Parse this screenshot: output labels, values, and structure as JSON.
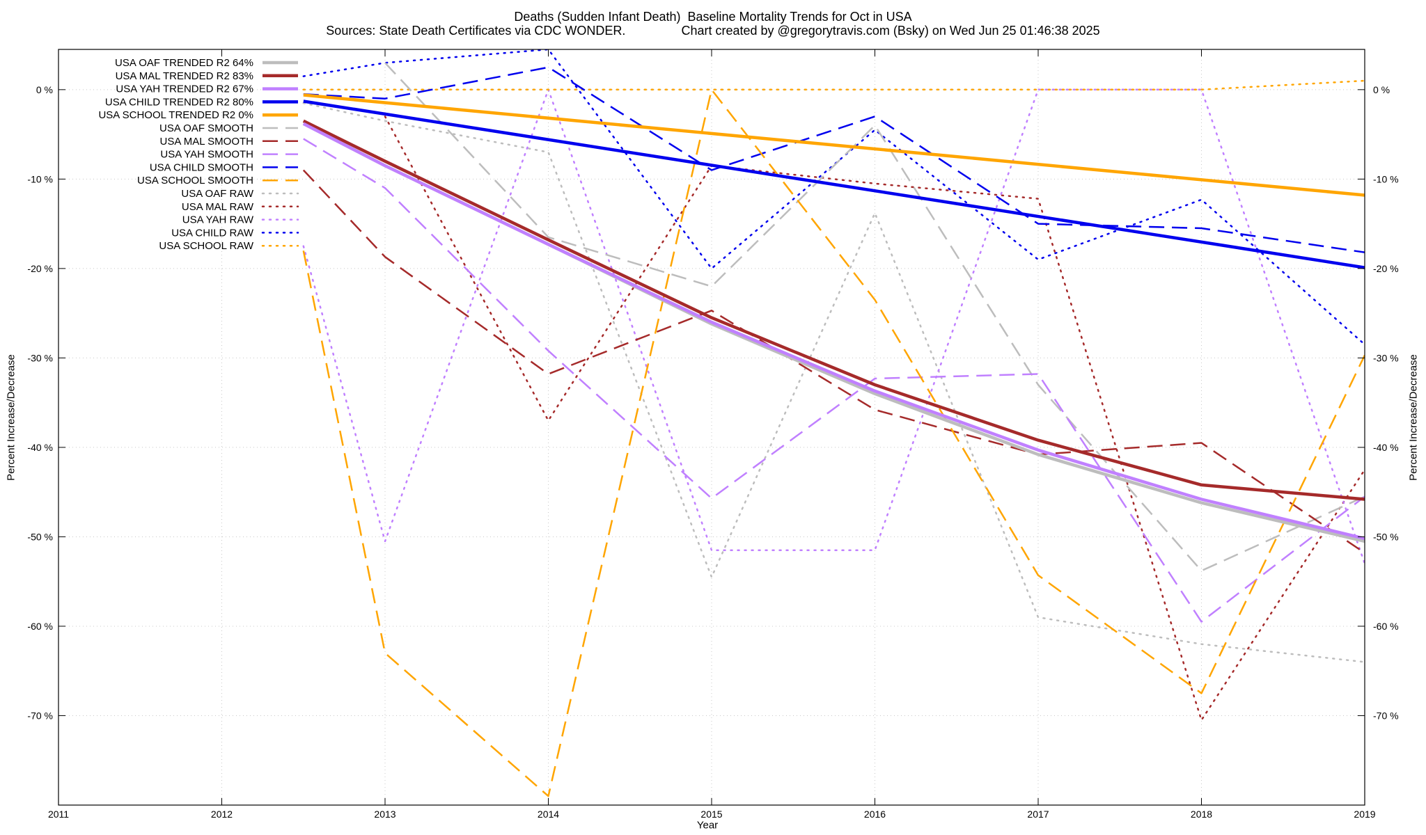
{
  "chart_data": {
    "type": "line",
    "title": "Deaths (Sudden Infant Death)  Baseline Mortality Trends for Oct in USA",
    "subtitle": "Sources: State Death Certificates via CDC WONDER.                Chart created by @gregorytravis.com (Bsky) on Wed Jun 25 01:46:38 2025",
    "xlabel": "Year",
    "ylabel": "Percent Increase/Decrease",
    "y2label": "Percent Increase/Decrease",
    "xlim": [
      2011,
      2019
    ],
    "ylim": [
      -80,
      4.5
    ],
    "x_ticks": [
      2011,
      2012,
      2013,
      2014,
      2015,
      2016,
      2017,
      2018,
      2019
    ],
    "y_ticks": [
      0,
      -10,
      -20,
      -30,
      -40,
      -50,
      -60,
      -70
    ],
    "y_tick_labels": [
      "0 %",
      "-10 %",
      "-20 %",
      "-30 %",
      "-40 %",
      "-50 %",
      "-60 %",
      "-70 %"
    ],
    "grid": true,
    "legend_position": "top-left",
    "series": [
      {
        "name": "USA OAF TRENDED R2  64%",
        "color": "#bdbdbd",
        "style": "solid",
        "width": 4.5,
        "x": [
          2012.5,
          2013,
          2014,
          2015,
          2016,
          2017,
          2018,
          2019
        ],
        "y": [
          -3.8,
          -8.5,
          -17.3,
          -26.2,
          -34.0,
          -40.8,
          -46.2,
          -50.5
        ]
      },
      {
        "name": "USA MAL TRENDED R2  83%",
        "color": "#a52a2a",
        "style": "solid",
        "width": 4.5,
        "x": [
          2012.5,
          2013,
          2014,
          2015,
          2016,
          2017,
          2018,
          2019
        ],
        "y": [
          -3.5,
          -8.0,
          -16.8,
          -25.5,
          -33.0,
          -39.2,
          -44.2,
          -45.8
        ]
      },
      {
        "name": "USA YAH TRENDED R2  67%",
        "color": "#c080ff",
        "style": "solid",
        "width": 4.5,
        "x": [
          2012.5,
          2013,
          2014,
          2015,
          2016,
          2017,
          2018,
          2019
        ],
        "y": [
          -3.8,
          -8.5,
          -17.3,
          -26.0,
          -33.7,
          -40.3,
          -45.8,
          -50.2
        ]
      },
      {
        "name": "USA CHILD TRENDED R2  80%",
        "color": "#0000ee",
        "style": "solid",
        "width": 4.5,
        "x": [
          2012.5,
          2019
        ],
        "y": [
          -1.3,
          -19.9
        ]
      },
      {
        "name": "USA SCHOOL TRENDED R2   0%",
        "color": "#ffa500",
        "style": "solid",
        "width": 4.5,
        "x": [
          2012.5,
          2019
        ],
        "y": [
          -0.6,
          -11.8
        ]
      },
      {
        "name": "USA OAF SMOOTH",
        "color": "#bdbdbd",
        "style": "dashed",
        "width": 2.5,
        "x": [
          2013,
          2014,
          2015,
          2016,
          2017,
          2018,
          2019
        ],
        "y": [
          3,
          -16.5,
          -22,
          -4,
          -33,
          -53.8,
          -45.5
        ]
      },
      {
        "name": "USA MAL SMOOTH",
        "color": "#a52a2a",
        "style": "dashed",
        "width": 2.5,
        "x": [
          2012.5,
          2013,
          2014,
          2015,
          2016,
          2017,
          2018,
          2019
        ],
        "y": [
          -9,
          -18.7,
          -31.8,
          -24.7,
          -35.8,
          -40.8,
          -39.5,
          -51.8
        ]
      },
      {
        "name": "USA YAH SMOOTH",
        "color": "#c080ff",
        "style": "dashed",
        "width": 2.5,
        "x": [
          2012.5,
          2013,
          2014,
          2015,
          2016,
          2017,
          2018,
          2019
        ],
        "y": [
          -5.5,
          -11,
          -29.2,
          -45.7,
          -32.3,
          -31.8,
          -59.5,
          -45.5
        ]
      },
      {
        "name": "USA CHILD SMOOTH",
        "color": "#0000ee",
        "style": "dashed",
        "width": 2.5,
        "x": [
          2012.5,
          2013,
          2014,
          2015,
          2016,
          2017,
          2018,
          2019
        ],
        "y": [
          -0.5,
          -1,
          2.5,
          -9,
          -3,
          -15,
          -15.5,
          -18.2
        ]
      },
      {
        "name": "USA SCHOOL SMOOTH",
        "color": "#ffa500",
        "style": "dashed",
        "width": 2.5,
        "x": [
          2012.5,
          2013,
          2014,
          2015,
          2016,
          2017,
          2018,
          2019
        ],
        "y": [
          -18,
          -63,
          -79,
          0,
          -23.5,
          -54.3,
          -67.5,
          -29.7
        ]
      },
      {
        "name": "USA OAF RAW",
        "color": "#bdbdbd",
        "style": "dotted",
        "width": 2.5,
        "x": [
          2012.5,
          2013,
          2014,
          2015,
          2016,
          2017,
          2018,
          2019
        ],
        "y": [
          -1.5,
          -3.5,
          -7,
          -54.5,
          -13.8,
          -59,
          -62,
          -64
        ]
      },
      {
        "name": "USA MAL RAW",
        "color": "#a52a2a",
        "style": "dotted",
        "width": 2.5,
        "x": [
          2013,
          2014,
          2015,
          2016,
          2017,
          2018,
          2019
        ],
        "y": [
          -3,
          -37,
          -8.5,
          -10.5,
          -12.2,
          -70.5,
          -42.5
        ]
      },
      {
        "name": "USA YAH RAW",
        "color": "#c080ff",
        "style": "dotted",
        "width": 2.5,
        "x": [
          2012.5,
          2013,
          2014,
          2015,
          2016,
          2017,
          2018,
          2019
        ],
        "y": [
          -17.5,
          -50.5,
          0,
          -51.5,
          -51.5,
          0,
          0,
          -53
        ]
      },
      {
        "name": "USA CHILD RAW",
        "color": "#0000ee",
        "style": "dotted",
        "width": 2.5,
        "x": [
          2012.5,
          2013,
          2014,
          2015,
          2016,
          2017,
          2018,
          2019
        ],
        "y": [
          1.5,
          3,
          4.5,
          -20,
          -4.5,
          -19,
          -12.3,
          -28.5
        ]
      },
      {
        "name": "USA SCHOOL RAW",
        "color": "#ffa500",
        "style": "dotted",
        "width": 2.5,
        "x": [
          2012.5,
          2013,
          2014,
          2015,
          2016,
          2017,
          2018,
          2019
        ],
        "y": [
          0,
          0,
          0,
          0,
          0,
          0,
          0,
          1
        ]
      }
    ]
  }
}
